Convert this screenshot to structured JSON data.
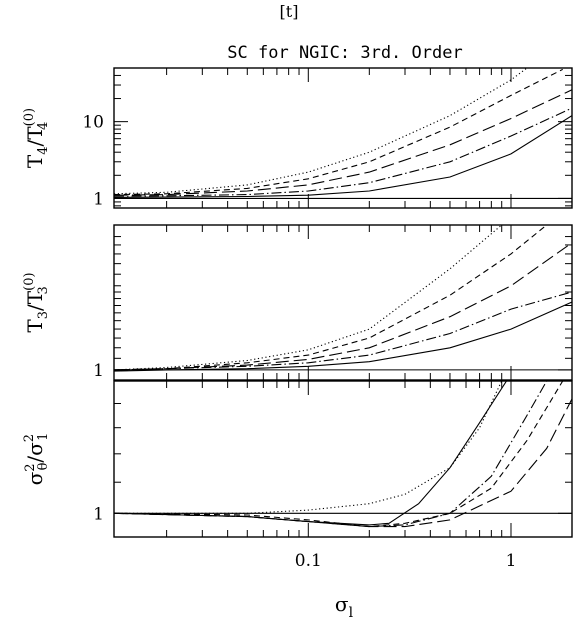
{
  "page_header": "[t]",
  "chart_data": {
    "type": "line",
    "title": "SC for NGIC: 3rd. Order",
    "xlabel": "σ",
    "xlabel_sub": "l",
    "x_scale": "log",
    "xlim": [
      0.011,
      2.0
    ],
    "x_ticks": [
      {
        "value": 0.1,
        "label": "0.1"
      },
      {
        "value": 1,
        "label": "1"
      }
    ],
    "line_styles": [
      "dotted",
      "short-dashed",
      "long-dashed",
      "dash-dot",
      "solid"
    ],
    "panels": [
      {
        "id": "t4",
        "ylabel_main": "T",
        "ylabel_sub": "4",
        "ylabel_den": "T",
        "ylabel_den_sup": "(0)",
        "ylabel_den_sub": "4",
        "y_scale": "log",
        "ylim": [
          0.75,
          50
        ],
        "reference_line": 1,
        "y_ticks": [
          {
            "value": 1,
            "label": "1"
          },
          {
            "value": 10,
            "label": "10"
          }
        ],
        "series": [
          {
            "style": "dotted",
            "x": [
              0.011,
              0.02,
              0.05,
              0.1,
              0.2,
              0.5,
              1.0,
              1.2
            ],
            "y": [
              1.15,
              1.2,
              1.5,
              2.2,
              4.0,
              12.0,
              35.0,
              50.0
            ]
          },
          {
            "style": "short-dashed",
            "x": [
              0.011,
              0.02,
              0.05,
              0.1,
              0.2,
              0.5,
              1.0,
              1.8
            ],
            "y": [
              1.12,
              1.15,
              1.35,
              1.8,
              3.0,
              8.5,
              22.0,
              48.0
            ]
          },
          {
            "style": "long-dashed",
            "x": [
              0.011,
              0.02,
              0.05,
              0.1,
              0.2,
              0.5,
              1.0,
              2.0
            ],
            "y": [
              1.1,
              1.12,
              1.25,
              1.5,
              2.2,
              5.0,
              11.0,
              26.0
            ]
          },
          {
            "style": "dash-dot",
            "x": [
              0.011,
              0.02,
              0.05,
              0.1,
              0.2,
              0.5,
              1.0,
              2.0
            ],
            "y": [
              1.07,
              1.08,
              1.12,
              1.25,
              1.6,
              3.0,
              6.5,
              15.0
            ]
          },
          {
            "style": "solid",
            "x": [
              0.011,
              0.02,
              0.05,
              0.1,
              0.2,
              0.5,
              1.0,
              2.0
            ],
            "y": [
              1.03,
              1.04,
              1.06,
              1.1,
              1.25,
              1.9,
              3.8,
              12.0
            ]
          }
        ]
      },
      {
        "id": "t3",
        "ylabel_main": "T",
        "ylabel_sub": "3",
        "ylabel_den": "T",
        "ylabel_den_sup": "(0)",
        "ylabel_den_sub": "3",
        "y_scale": "log",
        "ylim": [
          0.92,
          3.3
        ],
        "reference_line": 1,
        "y_ticks": [
          {
            "value": 1,
            "label": "1"
          }
        ],
        "series": [
          {
            "style": "dotted",
            "x": [
              0.011,
              0.02,
              0.05,
              0.1,
              0.2,
              0.5,
              0.9
            ],
            "y": [
              1.0,
              1.02,
              1.08,
              1.18,
              1.4,
              2.3,
              3.3
            ]
          },
          {
            "style": "short-dashed",
            "x": [
              0.011,
              0.02,
              0.05,
              0.1,
              0.2,
              0.5,
              1.0,
              1.5
            ],
            "y": [
              1.0,
              1.01,
              1.06,
              1.13,
              1.3,
              1.85,
              2.6,
              3.3
            ]
          },
          {
            "style": "long-dashed",
            "x": [
              0.011,
              0.02,
              0.05,
              0.1,
              0.2,
              0.5,
              1.0,
              2.0
            ],
            "y": [
              1.0,
              1.01,
              1.04,
              1.09,
              1.2,
              1.55,
              2.0,
              2.85
            ]
          },
          {
            "style": "dash-dot",
            "x": [
              0.011,
              0.02,
              0.05,
              0.1,
              0.2,
              0.5,
              1.0,
              2.0
            ],
            "y": [
              1.0,
              1.01,
              1.03,
              1.06,
              1.13,
              1.35,
              1.65,
              1.9
            ]
          },
          {
            "style": "solid",
            "x": [
              0.011,
              0.02,
              0.05,
              0.1,
              0.2,
              0.5,
              1.0,
              2.0
            ],
            "y": [
              0.99,
              1.0,
              1.01,
              1.03,
              1.07,
              1.2,
              1.4,
              1.75
            ]
          }
        ]
      },
      {
        "id": "var",
        "ylabel_main": "σ",
        "ylabel_sup": "2",
        "ylabel_sub": "θ",
        "ylabel_den": "σ",
        "ylabel_den_sup": "2",
        "ylabel_den_sub": "1",
        "y_scale": "log",
        "ylim": [
          0.93,
          1.5
        ],
        "reference_line": 1,
        "y_ticks": [
          {
            "value": 1,
            "label": "1"
          }
        ],
        "series": [
          {
            "style": "dotted",
            "x": [
              0.011,
              0.05,
              0.1,
              0.2,
              0.3,
              0.5,
              0.7,
              0.9
            ],
            "y": [
              1.0,
              1.0,
              1.01,
              1.03,
              1.06,
              1.15,
              1.3,
              1.5
            ]
          },
          {
            "style": "short-dashed",
            "x": [
              0.011,
              0.05,
              0.1,
              0.2,
              0.3,
              0.5,
              0.8,
              1.2,
              1.8
            ],
            "y": [
              1.0,
              0.995,
              0.98,
              0.96,
              0.97,
              1.0,
              1.08,
              1.25,
              1.5
            ]
          },
          {
            "style": "long-dashed",
            "x": [
              0.011,
              0.05,
              0.1,
              0.2,
              0.3,
              0.5,
              1.0,
              1.5,
              2.0
            ],
            "y": [
              1.0,
              0.99,
              0.975,
              0.96,
              0.96,
              0.98,
              1.07,
              1.22,
              1.42
            ]
          },
          {
            "style": "dash-dot",
            "x": [
              0.011,
              0.05,
              0.1,
              0.2,
              0.3,
              0.5,
              0.8,
              1.2,
              1.5
            ],
            "y": [
              1.0,
              0.99,
              0.975,
              0.96,
              0.965,
              1.0,
              1.12,
              1.35,
              1.5
            ]
          },
          {
            "style": "solid",
            "x": [
              0.011,
              0.05,
              0.1,
              0.2,
              0.25,
              0.35,
              0.5,
              0.7,
              0.95
            ],
            "y": [
              1.0,
              0.99,
              0.975,
              0.965,
              0.97,
              1.03,
              1.15,
              1.32,
              1.5
            ]
          }
        ]
      }
    ]
  }
}
